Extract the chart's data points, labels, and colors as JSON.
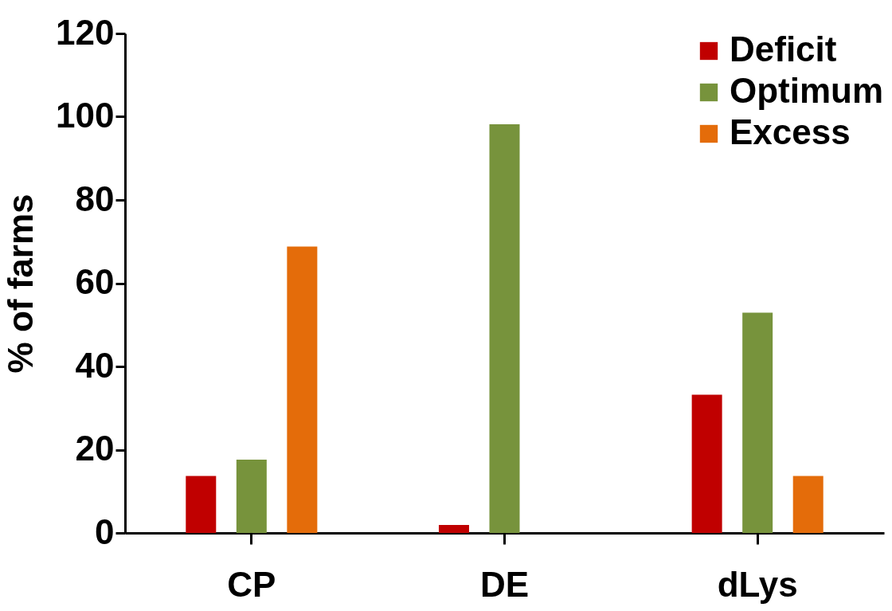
{
  "chart_data": {
    "type": "bar",
    "ylabel": "% of farms",
    "categories": [
      "CP",
      "DE",
      "dLys"
    ],
    "series": [
      {
        "name": "Deficit",
        "color": "#c00000",
        "values": [
          13.7,
          1.9,
          33.2
        ]
      },
      {
        "name": "Optimum",
        "color": "#77933c",
        "values": [
          17.6,
          98.2,
          52.9
        ]
      },
      {
        "name": "Excess",
        "color": "#e46c0a",
        "values": [
          68.8,
          0,
          13.7
        ]
      }
    ],
    "ylim": [
      0,
      120
    ],
    "yticks": [
      0,
      20,
      40,
      60,
      80,
      100,
      120
    ],
    "grid": false,
    "legend": "top right"
  }
}
